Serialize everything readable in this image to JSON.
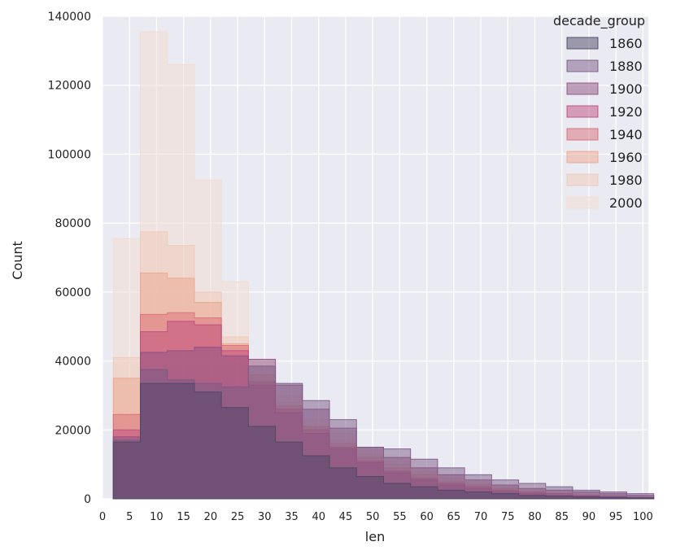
{
  "chart_data": {
    "type": "histogram-step",
    "xlabel": "len",
    "ylabel": "Count",
    "xlim": [
      0,
      101
    ],
    "ylim": [
      0,
      140000
    ],
    "x_ticks": [
      "0",
      "5",
      "10",
      "15",
      "20",
      "25",
      "30",
      "35",
      "40",
      "45",
      "50",
      "55",
      "60",
      "65",
      "70",
      "75",
      "80",
      "85",
      "90",
      "95",
      "100"
    ],
    "y_ticks": [
      "0",
      "20000",
      "40000",
      "60000",
      "80000",
      "100000",
      "120000",
      "140000"
    ],
    "grid": true,
    "bin_edges": [
      2,
      7,
      12,
      17,
      22,
      27,
      32,
      37,
      42,
      47,
      52,
      57,
      62,
      67,
      72,
      77,
      82,
      87,
      92,
      97,
      102
    ],
    "legend": {
      "title": "decade_group",
      "placement": "top-right"
    },
    "series": [
      {
        "name": "2000",
        "color": "#f2dcd0",
        "values": [
          75500,
          135500,
          126000,
          92500,
          63000,
          40000,
          30000,
          23000,
          19000,
          15000,
          12000,
          9000,
          7000,
          5000,
          4000,
          3000,
          2000,
          1500,
          1000,
          500
        ]
      },
      {
        "name": "1980",
        "color": "#f0c9b8",
        "values": [
          41000,
          77500,
          73500,
          60000,
          47000,
          38000,
          28000,
          21000,
          17000,
          13000,
          10000,
          8000,
          6000,
          4500,
          3500,
          2500,
          2000,
          1500,
          1000,
          500
        ]
      },
      {
        "name": "1960",
        "color": "#eba58e",
        "values": [
          35000,
          65500,
          64000,
          57000,
          45000,
          36000,
          27000,
          21000,
          16000,
          12000,
          9000,
          7000,
          5000,
          4000,
          3000,
          2000,
          1500,
          1000,
          800,
          500
        ]
      },
      {
        "name": "1940",
        "color": "#d96d77",
        "values": [
          24500,
          53500,
          54000,
          52500,
          44500,
          34000,
          26000,
          20000,
          15000,
          11000,
          8000,
          6000,
          4500,
          3500,
          2500,
          2000,
          1500,
          1000,
          700,
          400
        ]
      },
      {
        "name": "1920",
        "color": "#bf4d7f",
        "values": [
          20000,
          48500,
          51500,
          50500,
          43000,
          33000,
          25000,
          19000,
          14500,
          10500,
          7500,
          5500,
          4000,
          3000,
          2000,
          1500,
          1000,
          800,
          600,
          300
        ]
      },
      {
        "name": "1900",
        "color": "#8e4f82",
        "values": [
          18000,
          42500,
          43000,
          44000,
          41500,
          40500,
          33000,
          26000,
          20500,
          15000,
          12000,
          9000,
          7000,
          5500,
          4000,
          3000,
          2500,
          2000,
          1500,
          1000
        ]
      },
      {
        "name": "1880",
        "color": "#7a5a85",
        "values": [
          17000,
          37500,
          34500,
          33500,
          32500,
          38500,
          33500,
          28500,
          23000,
          15000,
          14500,
          11500,
          9000,
          7000,
          5500,
          4500,
          3500,
          2500,
          2000,
          1500
        ]
      },
      {
        "name": "1860",
        "color": "#4e4666",
        "values": [
          16500,
          33500,
          33500,
          31000,
          26500,
          21000,
          16500,
          12500,
          9000,
          6500,
          4500,
          3500,
          2500,
          2000,
          1500,
          1000,
          800,
          600,
          400,
          300
        ]
      }
    ]
  }
}
